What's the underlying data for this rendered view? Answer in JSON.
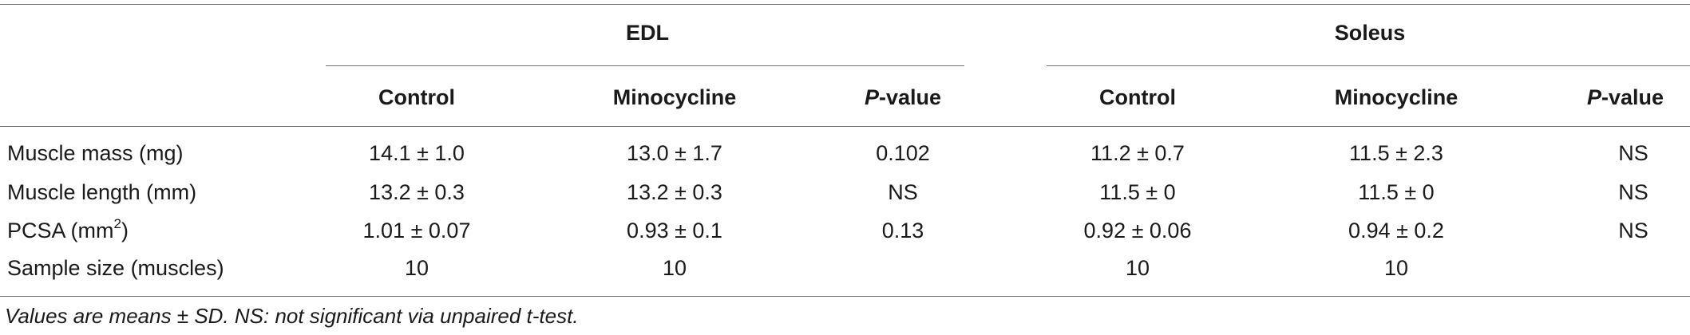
{
  "groups": {
    "edl": "EDL",
    "soleus": "Soleus"
  },
  "subheaders": {
    "control": "Control",
    "minocycline": "Minocycline",
    "p_italic": "P",
    "p_rest": "-value"
  },
  "rows": [
    {
      "label": "Muscle mass (mg)",
      "edl_control": "14.1 ± 1.0",
      "edl_mino": "13.0 ± 1.7",
      "edl_p": "0.102",
      "sol_control": "11.2 ± 0.7",
      "sol_mino": "11.5 ± 2.3",
      "sol_p": "NS"
    },
    {
      "label": "Muscle length (mm)",
      "edl_control": "13.2 ± 0.3",
      "edl_mino": "13.2 ± 0.3",
      "edl_p": "NS",
      "sol_control": "11.5 ± 0",
      "sol_mino": "11.5 ± 0",
      "sol_p": "NS"
    },
    {
      "label_main": "PCSA (mm",
      "label_sup": "2",
      "label_end": ")",
      "edl_control": "1.01 ± 0.07",
      "edl_mino": "0.93 ± 0.1",
      "edl_p": "0.13",
      "sol_control": "0.92 ± 0.06",
      "sol_mino": "0.94 ± 0.2",
      "sol_p": "NS"
    },
    {
      "label": "Sample size (muscles)",
      "edl_control": "10",
      "edl_mino": "10",
      "edl_p": "",
      "sol_control": "10",
      "sol_mino": "10",
      "sol_p": ""
    }
  ],
  "footnote": "Values are means ± SD. NS: not significant via unpaired t-test."
}
